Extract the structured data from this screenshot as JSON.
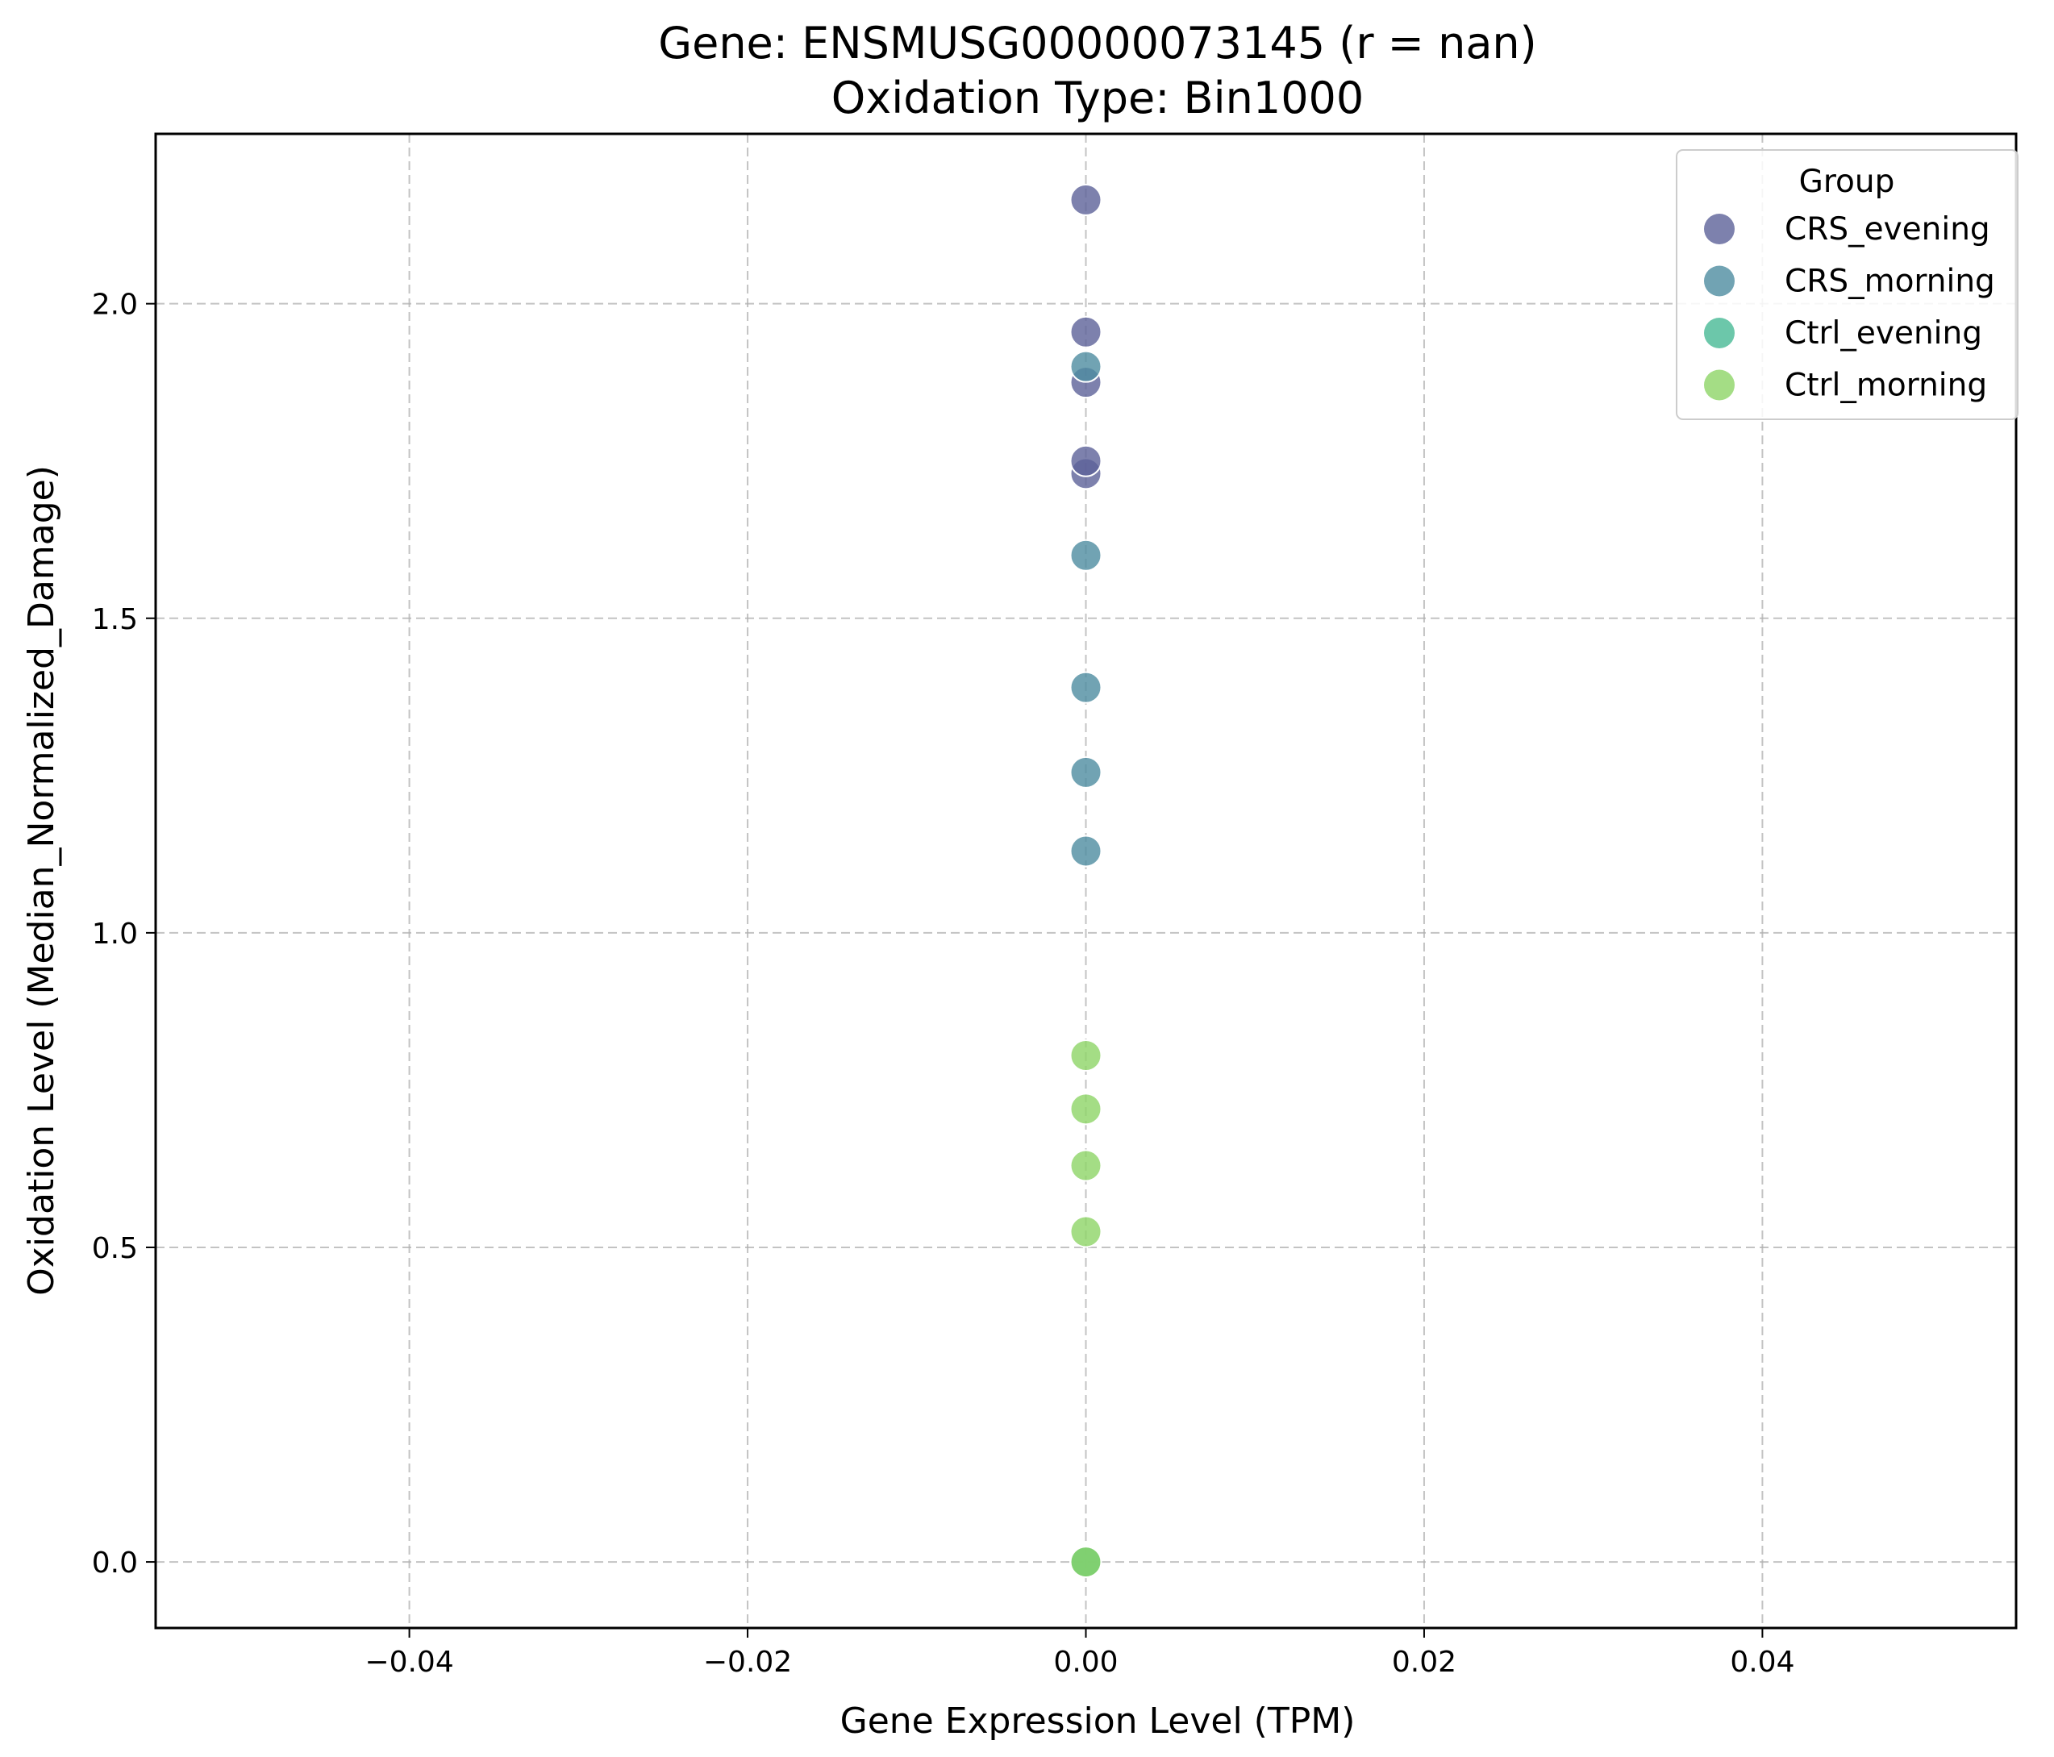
{
  "chart_data": {
    "type": "scatter",
    "title": "Gene: ENSMUSG00000073145 (r = nan)",
    "subtitle": "Oxidation Type: Bin1000",
    "xlabel": "Gene Expression Level (TPM)",
    "ylabel": "Oxidation Level (Median_Normalized_Damage)",
    "xlim": [
      -0.055,
      0.055
    ],
    "ylim": [
      -0.105,
      2.27
    ],
    "xticks": [
      -0.04,
      -0.02,
      0.0,
      0.02,
      0.04
    ],
    "xtick_labels": [
      "−0.04",
      "−0.02",
      "0.00",
      "0.02",
      "0.04"
    ],
    "yticks": [
      0.0,
      0.5,
      1.0,
      1.5,
      2.0
    ],
    "ytick_labels": [
      "0.0",
      "0.5",
      "1.0",
      "1.5",
      "2.0"
    ],
    "grid": true,
    "legend": {
      "title": "Group",
      "position": "top-right"
    },
    "series": [
      {
        "name": "CRS_evening",
        "color": "#5d6299",
        "x": [
          0,
          0,
          0,
          0,
          0
        ],
        "y": [
          2.165,
          1.955,
          1.875,
          1.73,
          1.75
        ]
      },
      {
        "name": "CRS_morning",
        "color": "#4e8ca0",
        "x": [
          0,
          0,
          0,
          0,
          0
        ],
        "y": [
          1.9,
          1.6,
          1.39,
          1.255,
          1.13
        ]
      },
      {
        "name": "Ctrl_evening",
        "color": "#47b995",
        "x": [
          0,
          0
        ],
        "y": [
          0.0,
          0.0
        ]
      },
      {
        "name": "Ctrl_morning",
        "color": "#8dd466",
        "x": [
          0,
          0,
          0,
          0,
          0
        ],
        "y": [
          0.805,
          0.72,
          0.63,
          0.525,
          0.0
        ]
      }
    ]
  }
}
